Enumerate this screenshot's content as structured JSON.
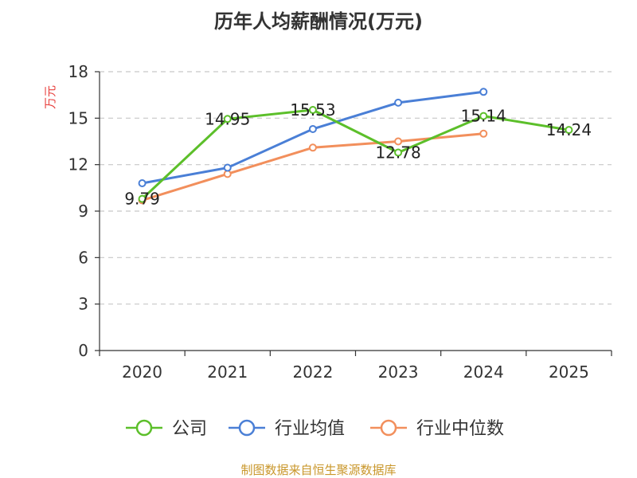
{
  "chart_data": {
    "type": "line",
    "title": "历年人均薪酬情况(万元)",
    "ylabel": "万元",
    "xlabel": "",
    "categories": [
      "2020",
      "2021",
      "2022",
      "2023",
      "2024",
      "2025"
    ],
    "ylim": [
      0,
      18
    ],
    "yticks": [
      0,
      3,
      6,
      9,
      12,
      15,
      18
    ],
    "grid": true,
    "legend_position": "bottom",
    "series": [
      {
        "name": "公司",
        "color": "#5cbf2a",
        "values": [
          9.79,
          14.95,
          15.53,
          12.78,
          15.14,
          14.24
        ],
        "labels": [
          "9.79",
          "14.95",
          "15.53",
          "12.78",
          "15.14",
          "14.24"
        ]
      },
      {
        "name": "行业均值",
        "color": "#4a7fd6",
        "values": [
          10.8,
          11.8,
          14.3,
          16.0,
          16.7,
          null
        ]
      },
      {
        "name": "行业中位数",
        "color": "#f28f5c",
        "values": [
          9.7,
          11.4,
          13.1,
          13.5,
          14.0,
          null
        ]
      }
    ]
  },
  "source_text": "制图数据来自恒生聚源数据库"
}
